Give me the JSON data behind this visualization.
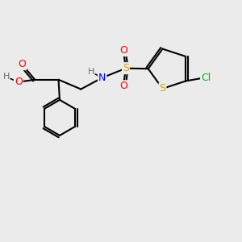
{
  "bg_color": "#ebebeb",
  "colors": {
    "C": "#000000",
    "O": "#ff0000",
    "N": "#0000ff",
    "S_sulfonyl": "#ccaa00",
    "S_thio": "#ccaa00",
    "Cl": "#00bb00",
    "H": "#607070",
    "bond": "#000000"
  },
  "layout": {
    "figsize": [
      3.0,
      3.0
    ],
    "dpi": 100,
    "xlim": [
      0,
      1
    ],
    "ylim": [
      0,
      1
    ]
  }
}
